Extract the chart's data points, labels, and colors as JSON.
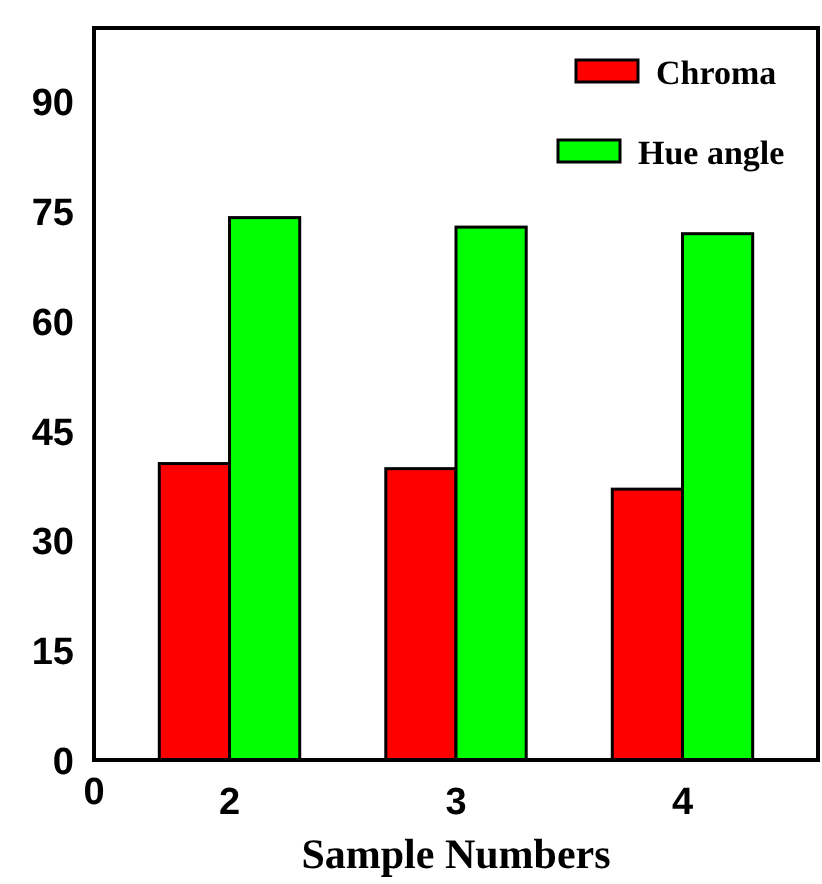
{
  "chart_data": {
    "type": "bar",
    "xlabel": "Sample Numbers",
    "categories": [
      "2",
      "3",
      "4"
    ],
    "series": [
      {
        "name": "Chroma",
        "color": "#ff0000",
        "values": [
          40.5,
          39.8,
          37.0
        ]
      },
      {
        "name": "Hue angle",
        "color": "#00ff00",
        "values": [
          74.1,
          72.8,
          71.9
        ]
      }
    ],
    "ylim": [
      0,
      100
    ],
    "yticks": [
      0,
      15,
      30,
      45,
      60,
      75,
      90
    ],
    "legend": "top right",
    "annotations": [
      "0"
    ]
  }
}
